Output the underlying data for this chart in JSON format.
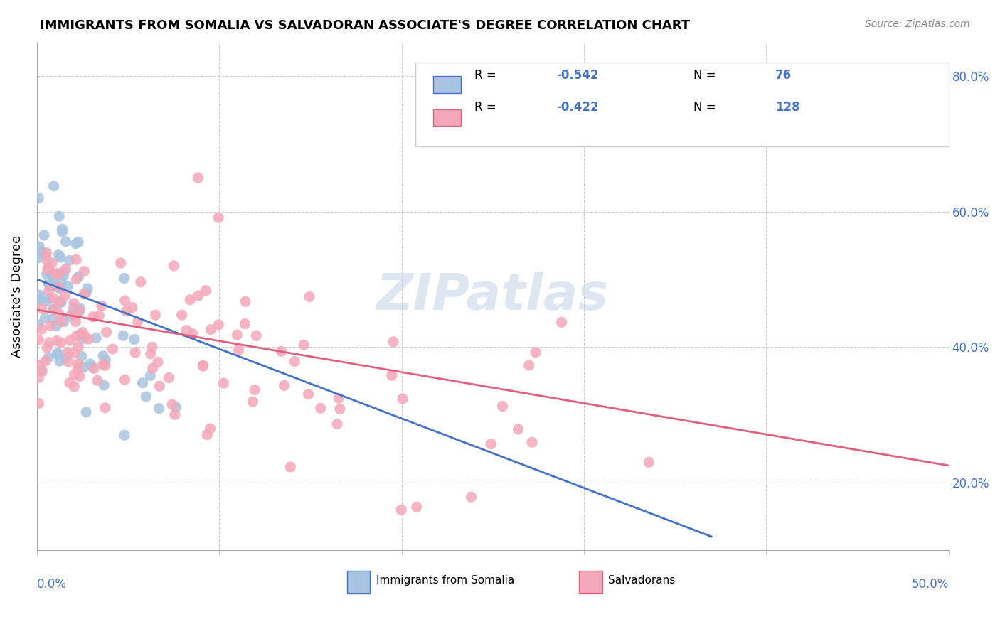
{
  "title": "IMMIGRANTS FROM SOMALIA VS SALVADORAN ASSOCIATE'S DEGREE CORRELATION CHART",
  "source": "Source: ZipAtlas.com",
  "ylabel": "Associate's Degree",
  "color_somalia": "#a8c4e0",
  "color_somalia_line": "#4472c4",
  "color_salvadoran": "#f4a7b9",
  "color_salvadoran_line": "#e06080",
  "color_text_blue": "#4472c4",
  "color_watermark": "#c8d8e8",
  "xlim": [
    0.0,
    0.5
  ],
  "ylim": [
    0.1,
    0.85
  ],
  "somalia_line_x": [
    0.0,
    0.37
  ],
  "somalia_line_y": [
    0.5,
    0.12
  ],
  "salvadoran_line_x": [
    0.0,
    0.5
  ],
  "salvadoran_line_y": [
    0.455,
    0.225
  ],
  "right_yticks": [
    0.2,
    0.4,
    0.6,
    0.8
  ],
  "right_yticklabels": [
    "20.0%",
    "40.0%",
    "60.0%",
    "80.0%"
  ]
}
